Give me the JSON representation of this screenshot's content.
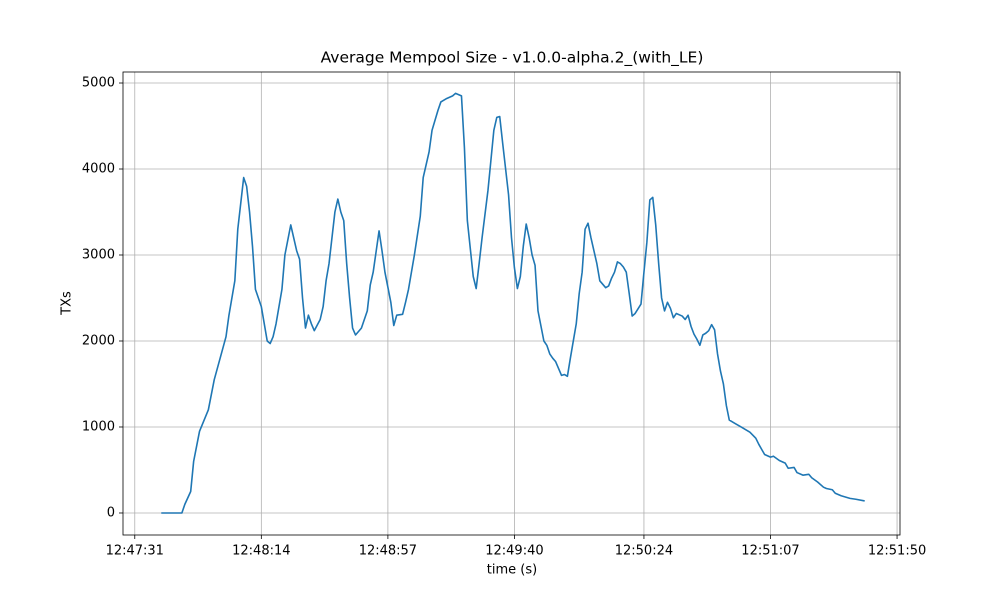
{
  "chart_data": {
    "type": "line",
    "title": "Average Mempool Size  -  v1.0.0-alpha.2_(with_LE)",
    "x_label": "time (s)",
    "y_label": "TXs",
    "color": "#1f77b4",
    "grid": true,
    "xlim": [
      "12:47:27",
      "12:51:51"
    ],
    "xticks": [
      "12:47:31",
      "12:48:14",
      "12:48:57",
      "12:49:40",
      "12:50:24",
      "12:51:07",
      "12:51:50"
    ],
    "ylim": [
      -256,
      5128
    ],
    "yticks": [
      0,
      1000,
      2000,
      3000,
      4000,
      5000
    ],
    "x": [
      "12:47:40",
      "12:47:47",
      "12:47:48",
      "12:47:50",
      "12:47:51",
      "12:47:53",
      "12:47:56",
      "12:47:58",
      "12:48:00",
      "12:48:02",
      "12:48:03",
      "12:48:05",
      "12:48:06",
      "12:48:08",
      "12:48:09",
      "12:48:10",
      "12:48:11",
      "12:48:12",
      "12:48:14",
      "12:48:16",
      "12:48:17",
      "12:48:18",
      "12:48:19",
      "12:48:21",
      "12:48:22",
      "12:48:24",
      "12:48:25",
      "12:48:26",
      "12:48:27",
      "12:48:28",
      "12:48:29",
      "12:48:30",
      "12:48:31",
      "12:48:32",
      "12:48:34",
      "12:48:35",
      "12:48:36",
      "12:48:37",
      "12:48:39",
      "12:48:40",
      "12:48:41",
      "12:48:42",
      "12:48:43",
      "12:48:44",
      "12:48:45",
      "12:48:46",
      "12:48:48",
      "12:48:50",
      "12:48:51",
      "12:48:52",
      "12:48:54",
      "12:48:55",
      "12:48:56",
      "12:48:58",
      "12:48:59",
      "12:49:00",
      "12:49:02",
      "12:49:03",
      "12:49:04",
      "12:49:06",
      "12:49:08",
      "12:49:09",
      "12:49:11",
      "12:49:12",
      "12:49:14",
      "12:49:15",
      "12:49:17",
      "12:49:19",
      "12:49:20",
      "12:49:22",
      "12:49:23",
      "12:49:24",
      "12:49:26",
      "12:49:27",
      "12:49:28",
      "12:49:29",
      "12:49:31",
      "12:49:32",
      "12:49:33",
      "12:49:34",
      "12:49:35",
      "12:49:36",
      "12:49:38",
      "12:49:39",
      "12:49:40",
      "12:49:41",
      "12:49:42",
      "12:49:43",
      "12:49:44",
      "12:49:45",
      "12:49:46",
      "12:49:47",
      "12:49:48",
      "12:49:50",
      "12:49:51",
      "12:49:52",
      "12:49:53",
      "12:49:54",
      "12:49:55",
      "12:49:56",
      "12:49:57",
      "12:49:58",
      "12:49:59",
      "12:50:01",
      "12:50:02",
      "12:50:03",
      "12:50:04",
      "12:50:05",
      "12:50:06",
      "12:50:07",
      "12:50:08",
      "12:50:09",
      "12:50:11",
      "12:50:12",
      "12:50:13",
      "12:50:14",
      "12:50:15",
      "12:50:16",
      "12:50:17",
      "12:50:18",
      "12:50:19",
      "12:50:20",
      "12:50:21",
      "12:50:23",
      "12:50:24",
      "12:50:25",
      "12:50:26",
      "12:50:27",
      "12:50:28",
      "12:50:29",
      "12:50:30",
      "12:50:31",
      "12:50:32",
      "12:50:33",
      "12:50:34",
      "12:50:35",
      "12:50:37",
      "12:50:38",
      "12:50:39",
      "12:50:40",
      "12:50:41",
      "12:50:42",
      "12:50:43",
      "12:50:44",
      "12:50:45",
      "12:50:46",
      "12:50:47",
      "12:50:48",
      "12:50:49",
      "12:50:50",
      "12:50:51",
      "12:50:52",
      "12:50:53",
      "12:50:55",
      "12:50:57",
      "12:50:59",
      "12:51:00",
      "12:51:02",
      "12:51:03",
      "12:51:05",
      "12:51:07",
      "12:51:08",
      "12:51:10",
      "12:51:12",
      "12:51:13",
      "12:51:15",
      "12:51:16",
      "12:51:18",
      "12:51:20",
      "12:51:21",
      "12:51:23",
      "12:51:25",
      "12:51:26",
      "12:51:28",
      "12:51:29",
      "12:51:31",
      "12:51:33",
      "12:51:34",
      "12:51:36",
      "12:51:39"
    ],
    "values": [
      0,
      0,
      100,
      250,
      600,
      950,
      1200,
      1550,
      1800,
      2050,
      2300,
      2700,
      3300,
      3900,
      3800,
      3500,
      3100,
      2600,
      2400,
      2000,
      1970,
      2050,
      2200,
      2600,
      3000,
      3350,
      3200,
      3050,
      2950,
      2500,
      2150,
      2300,
      2200,
      2120,
      2250,
      2400,
      2700,
      2900,
      3500,
      3650,
      3500,
      3400,
      2900,
      2500,
      2150,
      2070,
      2150,
      2350,
      2650,
      2800,
      3280,
      3050,
      2800,
      2450,
      2180,
      2300,
      2310,
      2450,
      2600,
      3000,
      3450,
      3900,
      4200,
      4450,
      4680,
      4780,
      4820,
      4850,
      4880,
      4850,
      4250,
      3400,
      2750,
      2610,
      2900,
      3200,
      3750,
      4100,
      4450,
      4600,
      4610,
      4300,
      3700,
      3200,
      2850,
      2610,
      2750,
      3100,
      3360,
      3200,
      3000,
      2880,
      2350,
      2000,
      1950,
      1850,
      1800,
      1760,
      1680,
      1600,
      1610,
      1590,
      1800,
      2200,
      2550,
      2800,
      3300,
      3370,
      3200,
      3050,
      2900,
      2700,
      2620,
      2640,
      2730,
      2800,
      2920,
      2900,
      2860,
      2800,
      2550,
      2290,
      2320,
      2430,
      2800,
      3150,
      3640,
      3670,
      3350,
      2900,
      2500,
      2350,
      2450,
      2380,
      2270,
      2320,
      2290,
      2250,
      2300,
      2170,
      2080,
      2020,
      1950,
      2070,
      2090,
      2120,
      2190,
      2130,
      1850,
      1650,
      1500,
      1250,
      1080,
      1040,
      1000,
      960,
      940,
      870,
      800,
      680,
      650,
      660,
      610,
      580,
      520,
      530,
      470,
      440,
      450,
      410,
      360,
      300,
      285,
      270,
      230,
      200,
      180,
      170,
      160,
      140
    ]
  }
}
